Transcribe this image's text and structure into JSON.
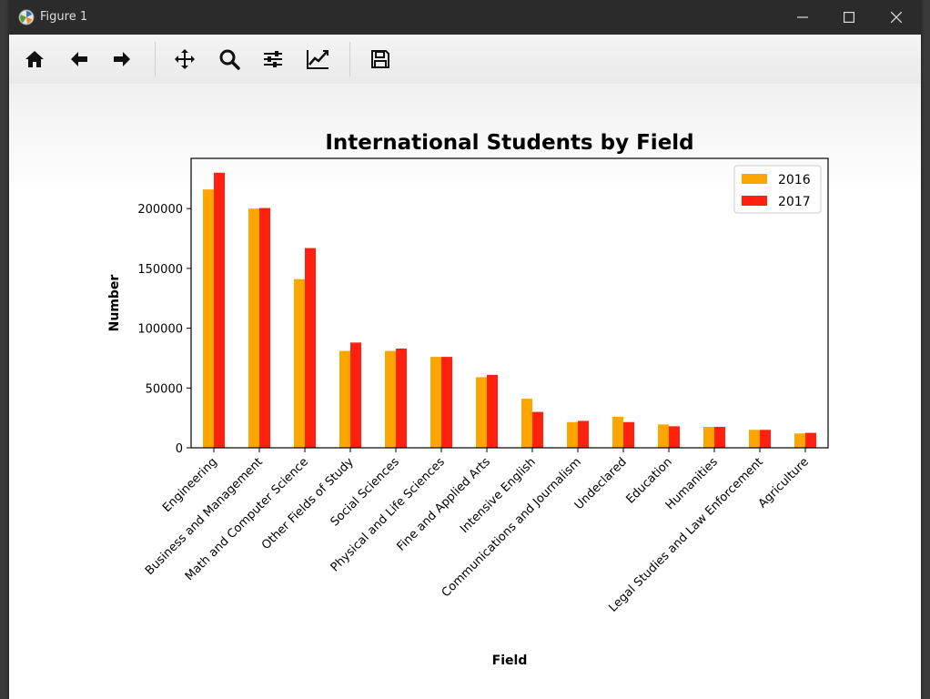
{
  "window": {
    "title": "Figure 1",
    "controls": {
      "minimize": "minimize",
      "maximize": "maximize",
      "close": "close"
    }
  },
  "toolbar": {
    "tools": [
      {
        "name": "home",
        "icon": "home-icon"
      },
      {
        "name": "back",
        "icon": "arrow-left-icon"
      },
      {
        "name": "forward",
        "icon": "arrow-right-icon"
      },
      {
        "name": "pan",
        "icon": "move-icon"
      },
      {
        "name": "zoom",
        "icon": "magnifier-icon"
      },
      {
        "name": "configure-subplots",
        "icon": "sliders-icon"
      },
      {
        "name": "edit-axis",
        "icon": "line-chart-icon"
      },
      {
        "name": "save",
        "icon": "floppy-disk-icon"
      }
    ]
  },
  "chart_data": {
    "type": "bar",
    "title": "International Students by Field",
    "xlabel": "Field",
    "ylabel": "Number",
    "ylim": [
      0,
      242000
    ],
    "yticks": [
      0,
      50000,
      100000,
      150000,
      200000
    ],
    "ytick_labels": [
      "0",
      "50000",
      "100000",
      "150000",
      "200000"
    ],
    "grid": false,
    "legend_position": "top-right",
    "categories": [
      "Engineering",
      "Business and Management",
      "Math and Computer Science",
      "Other Fields of Study",
      "Social Sciences",
      "Physical and Life Sciences",
      "Fine and Applied Arts",
      "Intensive English",
      "Communications and Journalism",
      "Undeclared",
      "Education",
      "Humanities",
      "Legal Studies and Law Enforcement",
      "Agriculture"
    ],
    "series": [
      {
        "name": "2016",
        "color": "#ffa500",
        "values": [
          216000,
          200000,
          141000,
          81000,
          81000,
          76000,
          59000,
          41000,
          21500,
          26000,
          19500,
          17500,
          15000,
          12000
        ]
      },
      {
        "name": "2017",
        "color": "#ff2010",
        "values": [
          230000,
          200500,
          167000,
          88000,
          83000,
          76000,
          61000,
          30000,
          22500,
          21500,
          18000,
          17500,
          15000,
          12500
        ]
      }
    ]
  }
}
